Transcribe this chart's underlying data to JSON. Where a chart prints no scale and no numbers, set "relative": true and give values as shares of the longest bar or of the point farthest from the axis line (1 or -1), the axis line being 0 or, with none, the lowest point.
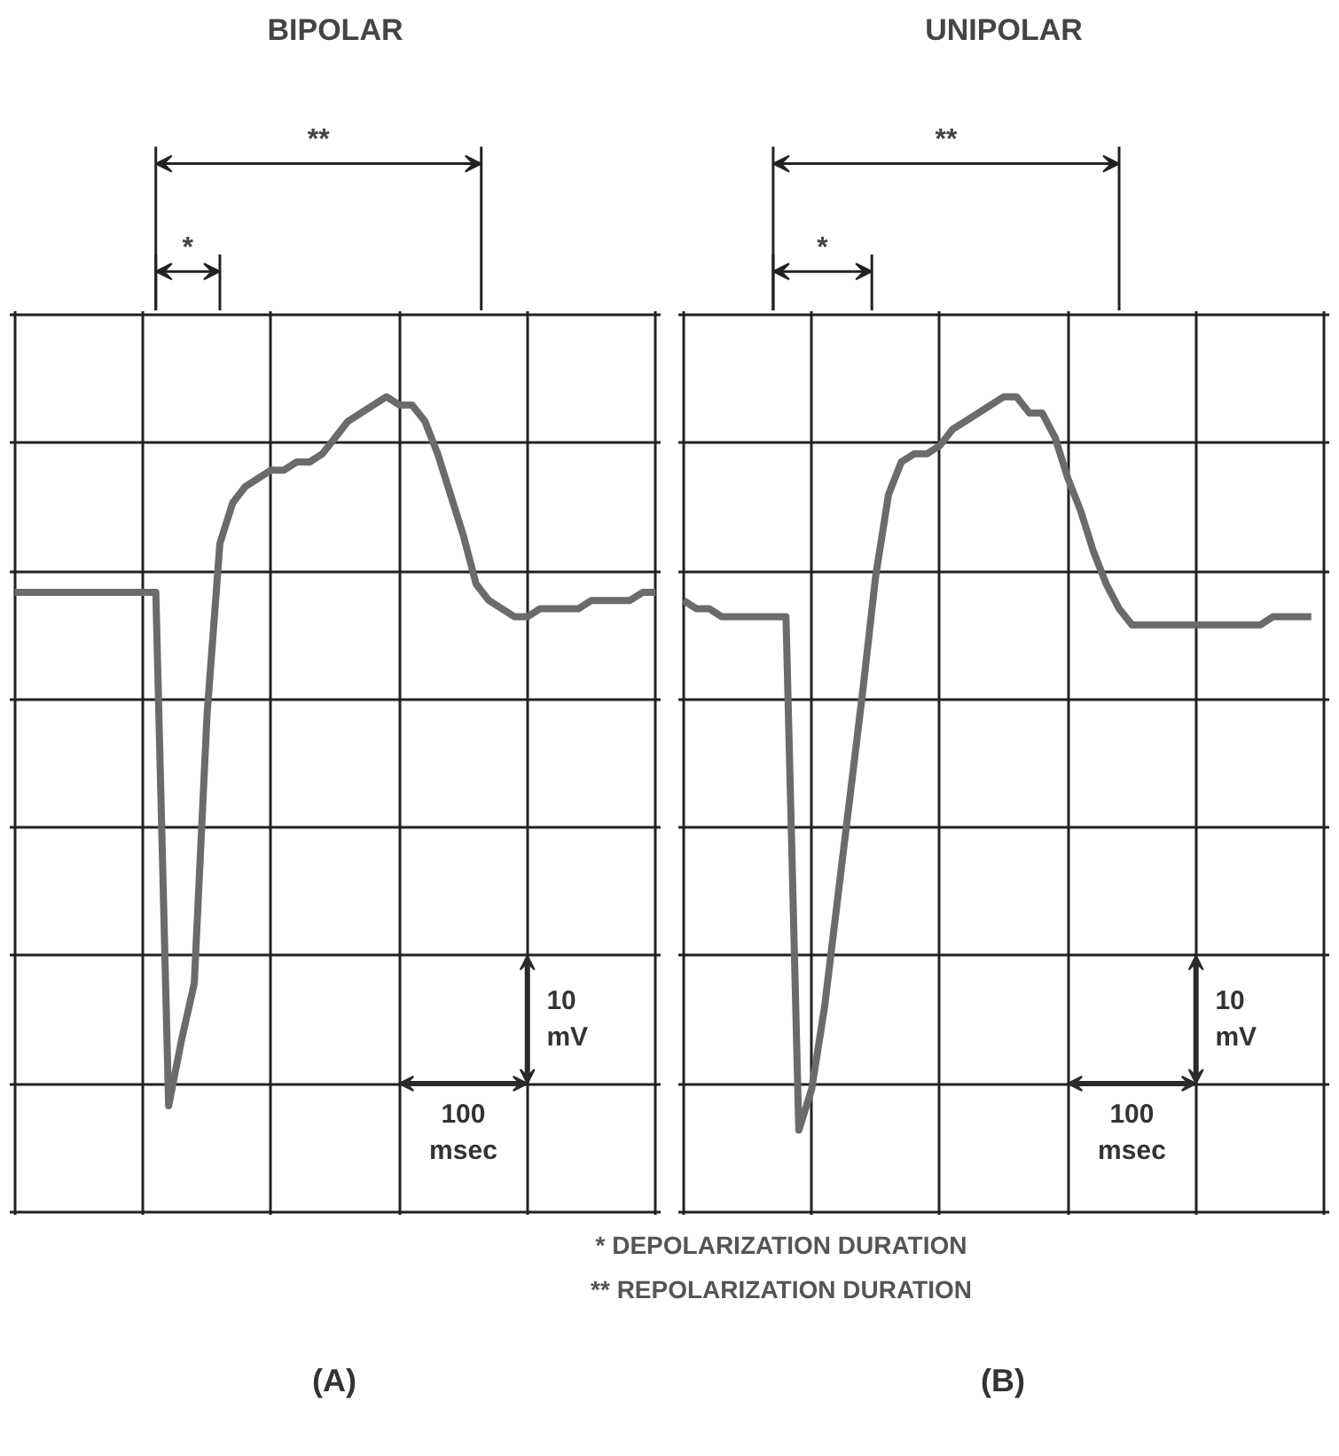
{
  "chart_data": [
    {
      "type": "line",
      "title": "BIPOLAR",
      "relative": true,
      "tick_labels": false,
      "grid": true,
      "categories": [
        null,
        null,
        null,
        null,
        null,
        null,
        null,
        null,
        null,
        null,
        null,
        null,
        null,
        null,
        null,
        null,
        null,
        null,
        null,
        null,
        null,
        null,
        null,
        null,
        null,
        null,
        null,
        null,
        null,
        null,
        null,
        null,
        null,
        null,
        null,
        null,
        null,
        null,
        null,
        null,
        null,
        null,
        null,
        null,
        null,
        null,
        null,
        null,
        null,
        null,
        null
      ],
      "series": [
        {
          "color": "#6b6b6b",
          "values": [
            0.76,
            0.76,
            0.76,
            0.76,
            0.76,
            0.76,
            0.76,
            0.76,
            0.76,
            0.76,
            0.76,
            0.76,
            0.13,
            0.21,
            0.28,
            0.61,
            0.82,
            0.87,
            0.89,
            0.9,
            0.91,
            0.91,
            0.92,
            0.92,
            0.93,
            0.95,
            0.97,
            0.98,
            0.99,
            1,
            0.99,
            0.99,
            0.97,
            0.93,
            0.88,
            0.83,
            0.77,
            0.75,
            0.74,
            0.73,
            0.73,
            0.74,
            0.74,
            0.74,
            0.74,
            0.75,
            0.75,
            0.75,
            0.75,
            0.76,
            0.76
          ]
        }
      ],
      "annotations": [
        "*",
        "**",
        "10 mV",
        "100 msec",
        "(A)",
        "* DEPOLARIZATION DURATION",
        "** REPOLARIZATION DURATION"
      ]
    },
    {
      "type": "line",
      "title": "UNIPOLAR",
      "relative": true,
      "tick_labels": false,
      "grid": true,
      "categories": [
        null,
        null,
        null,
        null,
        null,
        null,
        null,
        null,
        null,
        null,
        null,
        null,
        null,
        null,
        null,
        null,
        null,
        null,
        null,
        null,
        null,
        null,
        null,
        null,
        null,
        null,
        null,
        null,
        null,
        null,
        null,
        null,
        null,
        null,
        null,
        null,
        null,
        null,
        null,
        null,
        null,
        null,
        null,
        null,
        null,
        null,
        null,
        null,
        null,
        null
      ],
      "series": [
        {
          "color": "#6b6b6b",
          "values": [
            0.75,
            0.74,
            0.74,
            0.73,
            0.73,
            0.73,
            0.73,
            0.73,
            0.73,
            0.1,
            0.15,
            0.25,
            0.38,
            0.51,
            0.64,
            0.78,
            0.88,
            0.92,
            0.93,
            0.93,
            0.94,
            0.96,
            0.97,
            0.98,
            0.99,
            1,
            1,
            0.98,
            0.98,
            0.95,
            0.9,
            0.86,
            0.81,
            0.77,
            0.74,
            0.72,
            0.72,
            0.72,
            0.72,
            0.72,
            0.72,
            0.72,
            0.72,
            0.72,
            0.72,
            0.72,
            0.73,
            0.73,
            0.73,
            0.73
          ]
        }
      ],
      "annotations": [
        "*",
        "**",
        "10 mV",
        "100 msec",
        "(B)"
      ]
    }
  ]
}
